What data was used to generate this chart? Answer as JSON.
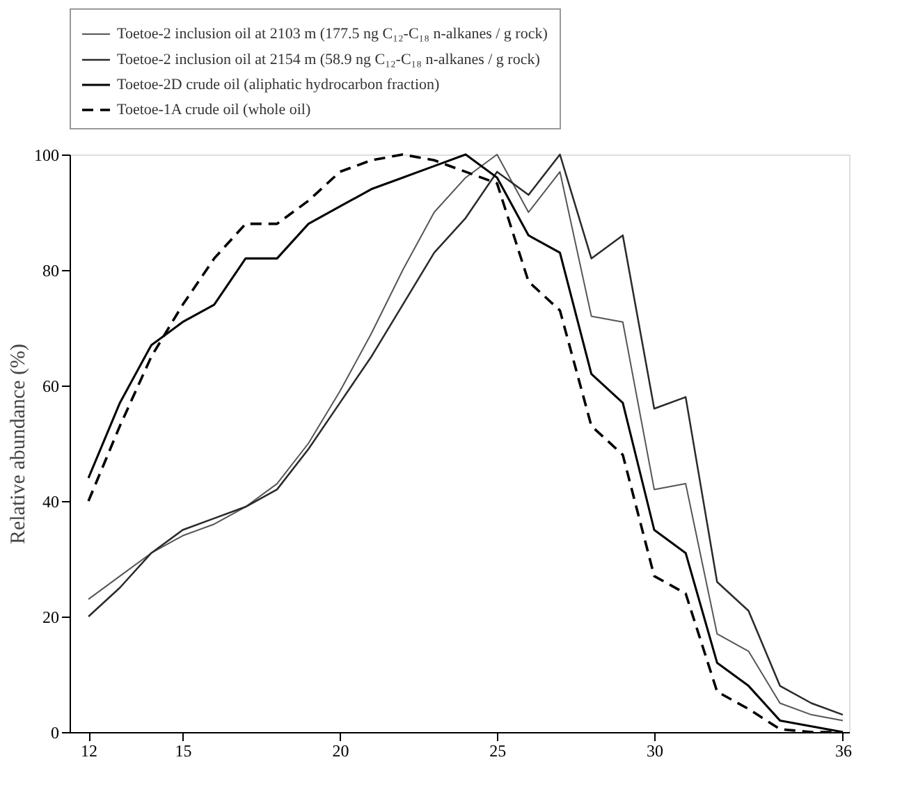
{
  "chart_data": {
    "type": "line",
    "ylabel": "Relative abundance (%)",
    "x": [
      12,
      13,
      14,
      15,
      16,
      17,
      18,
      19,
      20,
      21,
      22,
      23,
      24,
      25,
      26,
      27,
      28,
      29,
      30,
      31,
      32,
      33,
      34,
      35,
      36
    ],
    "series": [
      {
        "name": "Toetoe-2 inclusion oil at 2103 m (177.5 ng C₁₂-C₁₈ n-alkanes / g rock)",
        "color": "#555555",
        "line_style": "solid",
        "values": [
          23,
          27,
          31,
          34,
          36,
          39,
          43,
          50,
          59,
          69,
          80,
          90,
          96,
          100,
          90,
          97,
          72,
          71,
          42,
          43,
          17,
          14,
          5,
          3,
          2
        ]
      },
      {
        "name": "Toetoe-2 inclusion oil at 2154 m (58.9 ng C₁₂-C₁₈ n-alkanes / g rock)",
        "color": "#2a2a2a",
        "line_style": "solid",
        "values": [
          20,
          25,
          31,
          35,
          37,
          39,
          42,
          49,
          57,
          65,
          74,
          83,
          89,
          97,
          93,
          100,
          82,
          86,
          56,
          58,
          26,
          21,
          8,
          5,
          3
        ]
      },
      {
        "name": "Toetoe-2D crude oil (aliphatic hydrocarbon fraction)",
        "color": "#000000",
        "line_style": "solid",
        "values": [
          44,
          57,
          67,
          71,
          74,
          82,
          82,
          88,
          91,
          94,
          96,
          98,
          100,
          96,
          86,
          83,
          62,
          57,
          35,
          31,
          12,
          8,
          2,
          1,
          0
        ]
      },
      {
        "name": "Toetoe-1A crude oil (whole oil)",
        "color": "#000000",
        "line_style": "dashed",
        "values": [
          40,
          53,
          65,
          74,
          82,
          88,
          88,
          92,
          97,
          99,
          100,
          99,
          97,
          95,
          78,
          73,
          53,
          48,
          27,
          24,
          7,
          4,
          0.5,
          0,
          0
        ]
      }
    ],
    "xlim": [
      11.4,
      36.2
    ],
    "xticks": [
      12,
      15,
      20,
      25,
      30,
      36
    ],
    "ylim": [
      0,
      100
    ],
    "yticks": [
      0,
      20,
      40,
      60,
      80,
      100
    ],
    "grid": false,
    "legend": "top",
    "marker": "none"
  }
}
